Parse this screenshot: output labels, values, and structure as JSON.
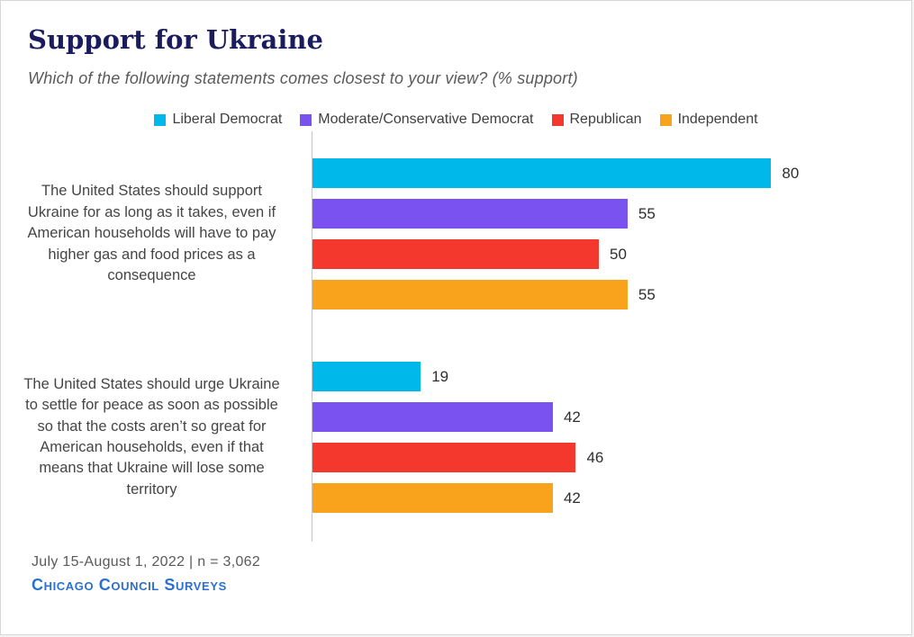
{
  "title": "Support for Ukraine",
  "subtitle": "Which of the following statements comes closest to your view? (% support)",
  "footer": {
    "note": "July 15-August 1, 2022 | n = 3,062",
    "source": "Chicago Council Surveys"
  },
  "chart_data": {
    "type": "bar",
    "orientation": "horizontal",
    "title": "Support for Ukraine",
    "subtitle": "Which of the following statements comes closest to your view? (% support)",
    "categories": [
      "The United States should support Ukraine for as long as it takes, even if American households will have to pay higher gas and food prices as a consequence",
      "The United States should urge Ukraine to settle for peace as soon as possible so that the costs aren’t so great for American households, even if that means that Ukraine will lose some territory"
    ],
    "series": [
      {
        "name": "Liberal Democrat",
        "color": "#00b8ea",
        "values": [
          80,
          19
        ]
      },
      {
        "name": "Moderate/Conservative Democrat",
        "color": "#7a52f0",
        "values": [
          55,
          42
        ]
      },
      {
        "name": "Republican",
        "color": "#f4382e",
        "values": [
          50,
          46
        ]
      },
      {
        "name": "Independent",
        "color": "#f9a21b",
        "values": [
          55,
          42
        ]
      }
    ],
    "xlim": [
      0,
      100
    ],
    "grid": false,
    "legend_position": "top",
    "value_labels": true,
    "unit": "% support"
  }
}
